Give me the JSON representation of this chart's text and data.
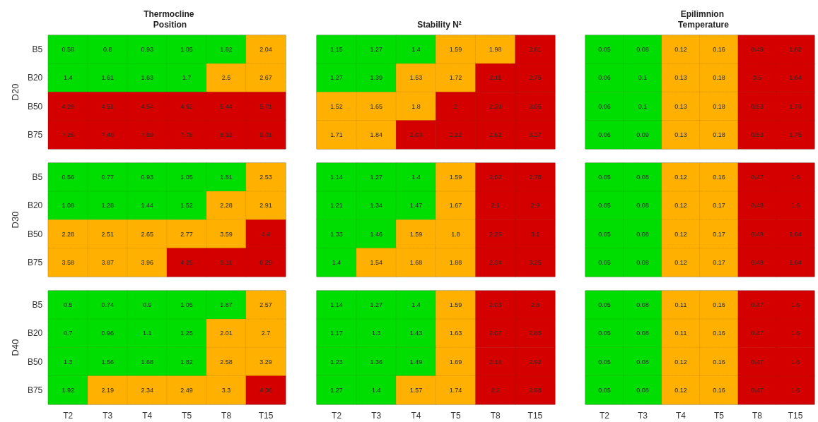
{
  "chart_data": [
    {
      "type": "heatmap",
      "title": "Thermocline Position",
      "ylabel": "D20",
      "categories": [
        "T2",
        "T3",
        "T4",
        "T5",
        "T8",
        "T15"
      ],
      "y_categories": [
        "B5",
        "B20",
        "B50",
        "B75"
      ],
      "tick_labels": "y",
      "data_labels": true,
      "cells": [
        [
          0.58,
          0.8,
          0.93,
          1.05,
          1.82,
          2.04
        ],
        [
          1.4,
          1.61,
          1.63,
          1.7,
          2.5,
          2.67
        ],
        [
          4.29,
          4.51,
          4.54,
          4.62,
          5.44,
          5.71
        ],
        [
          7.26,
          7.48,
          7.69,
          7.78,
          8.62,
          9.01
        ]
      ],
      "colors": [
        [
          "#00dd00",
          "#00dd00",
          "#00dd00",
          "#00dd00",
          "#00dd00",
          "#ffb000"
        ],
        [
          "#00dd00",
          "#00dd00",
          "#00dd00",
          "#00dd00",
          "#ffb000",
          "#ffb000"
        ],
        [
          "#d40000",
          "#d40000",
          "#d40000",
          "#d40000",
          "#d40000",
          "#d40000"
        ],
        [
          "#d40000",
          "#d40000",
          "#d40000",
          "#d40000",
          "#d40000",
          "#d40000"
        ]
      ]
    },
    {
      "type": "heatmap",
      "title": "Stability N²",
      "categories": [
        "T2",
        "T3",
        "T4",
        "T5",
        "T8",
        "T15"
      ],
      "y_categories": [
        "B5",
        "B20",
        "B50",
        "B75"
      ],
      "tick_labels": false,
      "data_labels": true,
      "cells": [
        [
          1.15,
          1.27,
          1.4,
          1.59,
          1.98,
          2.61
        ],
        [
          1.27,
          1.39,
          1.53,
          1.72,
          2.11,
          2.75
        ],
        [
          1.52,
          1.65,
          1.8,
          2,
          2.39,
          3.05
        ],
        [
          1.71,
          1.84,
          2.03,
          2.22,
          2.62,
          3.27
        ]
      ],
      "colors": [
        [
          "#00dd00",
          "#00dd00",
          "#00dd00",
          "#ffb000",
          "#ffb000",
          "#d40000"
        ],
        [
          "#00dd00",
          "#00dd00",
          "#ffb000",
          "#ffb000",
          "#d40000",
          "#d40000"
        ],
        [
          "#ffb000",
          "#ffb000",
          "#ffb000",
          "#d40000",
          "#d40000",
          "#d40000"
        ],
        [
          "#ffb000",
          "#ffb000",
          "#d40000",
          "#d40000",
          "#d40000",
          "#d40000"
        ]
      ]
    },
    {
      "type": "heatmap",
      "title": "Epilimnion Temperature",
      "categories": [
        "T2",
        "T3",
        "T4",
        "T5",
        "T8",
        "T15"
      ],
      "y_categories": [
        "B5",
        "B20",
        "B50",
        "B75"
      ],
      "tick_labels": false,
      "data_labels": true,
      "cells": [
        [
          0.05,
          0.08,
          0.12,
          0.16,
          0.49,
          1.62
        ],
        [
          0.06,
          0.1,
          0.13,
          0.18,
          0.5,
          1.64
        ],
        [
          0.06,
          0.1,
          0.13,
          0.18,
          0.53,
          1.76
        ],
        [
          0.06,
          0.09,
          0.13,
          0.18,
          0.53,
          1.75
        ]
      ],
      "colors": [
        [
          "#00dd00",
          "#00dd00",
          "#ffb000",
          "#ffb000",
          "#d40000",
          "#d40000"
        ],
        [
          "#00dd00",
          "#00dd00",
          "#ffb000",
          "#ffb000",
          "#d40000",
          "#d40000"
        ],
        [
          "#00dd00",
          "#00dd00",
          "#ffb000",
          "#ffb000",
          "#d40000",
          "#d40000"
        ],
        [
          "#00dd00",
          "#00dd00",
          "#ffb000",
          "#ffb000",
          "#d40000",
          "#d40000"
        ]
      ]
    },
    {
      "type": "heatmap",
      "ylabel": "D30",
      "categories": [
        "T2",
        "T3",
        "T4",
        "T5",
        "T8",
        "T15"
      ],
      "y_categories": [
        "B5",
        "B20",
        "B50",
        "B75"
      ],
      "tick_labels": "y",
      "data_labels": true,
      "cells": [
        [
          0.56,
          0.77,
          0.93,
          1.05,
          1.81,
          2.53
        ],
        [
          1.08,
          1.28,
          1.44,
          1.52,
          2.28,
          2.91
        ],
        [
          2.28,
          2.51,
          2.65,
          2.77,
          3.59,
          4.4
        ],
        [
          3.58,
          3.87,
          3.96,
          4.25,
          5.11,
          6.29
        ]
      ],
      "colors": [
        [
          "#00dd00",
          "#00dd00",
          "#00dd00",
          "#00dd00",
          "#00dd00",
          "#ffb000"
        ],
        [
          "#00dd00",
          "#00dd00",
          "#00dd00",
          "#00dd00",
          "#ffb000",
          "#ffb000"
        ],
        [
          "#ffb000",
          "#ffb000",
          "#ffb000",
          "#ffb000",
          "#ffb000",
          "#d40000"
        ],
        [
          "#ffb000",
          "#ffb000",
          "#ffb000",
          "#d40000",
          "#d40000",
          "#d40000"
        ]
      ]
    },
    {
      "type": "heatmap",
      "categories": [
        "T2",
        "T3",
        "T4",
        "T5",
        "T8",
        "T15"
      ],
      "y_categories": [
        "B5",
        "B20",
        "B50",
        "B75"
      ],
      "tick_labels": false,
      "data_labels": true,
      "cells": [
        [
          1.14,
          1.27,
          1.4,
          1.59,
          2.02,
          2.78
        ],
        [
          1.21,
          1.34,
          1.47,
          1.67,
          2.1,
          2.9
        ],
        [
          1.33,
          1.46,
          1.59,
          1.8,
          2.25,
          3.1
        ],
        [
          1.4,
          1.54,
          1.68,
          1.88,
          2.34,
          3.25
        ]
      ],
      "colors": [
        [
          "#00dd00",
          "#00dd00",
          "#00dd00",
          "#ffb000",
          "#d40000",
          "#d40000"
        ],
        [
          "#00dd00",
          "#00dd00",
          "#00dd00",
          "#ffb000",
          "#d40000",
          "#d40000"
        ],
        [
          "#00dd00",
          "#00dd00",
          "#ffb000",
          "#ffb000",
          "#d40000",
          "#d40000"
        ],
        [
          "#00dd00",
          "#ffb000",
          "#ffb000",
          "#ffb000",
          "#d40000",
          "#d40000"
        ]
      ]
    },
    {
      "type": "heatmap",
      "categories": [
        "T2",
        "T3",
        "T4",
        "T5",
        "T8",
        "T15"
      ],
      "y_categories": [
        "B5",
        "B20",
        "B50",
        "B75"
      ],
      "tick_labels": false,
      "data_labels": true,
      "cells": [
        [
          0.05,
          0.08,
          0.12,
          0.16,
          0.47,
          1.6
        ],
        [
          0.05,
          0.08,
          0.12,
          0.17,
          0.48,
          1.6
        ],
        [
          0.05,
          0.08,
          0.12,
          0.17,
          0.48,
          1.64
        ],
        [
          0.05,
          0.08,
          0.12,
          0.17,
          0.48,
          1.64
        ]
      ],
      "colors": [
        [
          "#00dd00",
          "#00dd00",
          "#ffb000",
          "#ffb000",
          "#d40000",
          "#d40000"
        ],
        [
          "#00dd00",
          "#00dd00",
          "#ffb000",
          "#ffb000",
          "#d40000",
          "#d40000"
        ],
        [
          "#00dd00",
          "#00dd00",
          "#ffb000",
          "#ffb000",
          "#d40000",
          "#d40000"
        ],
        [
          "#00dd00",
          "#00dd00",
          "#ffb000",
          "#ffb000",
          "#d40000",
          "#d40000"
        ]
      ]
    },
    {
      "type": "heatmap",
      "ylabel": "D40",
      "categories": [
        "T2",
        "T3",
        "T4",
        "T5",
        "T8",
        "T15"
      ],
      "y_categories": [
        "B5",
        "B20",
        "B50",
        "B75"
      ],
      "data_labels": true,
      "cells": [
        [
          0.5,
          0.74,
          0.9,
          1.05,
          1.87,
          2.57
        ],
        [
          0.7,
          0.96,
          1.1,
          1.25,
          2.01,
          2.7
        ],
        [
          1.3,
          1.56,
          1.68,
          1.82,
          2.58,
          3.29
        ],
        [
          1.92,
          2.19,
          2.34,
          2.49,
          3.3,
          4.06
        ]
      ],
      "colors": [
        [
          "#00dd00",
          "#00dd00",
          "#00dd00",
          "#00dd00",
          "#00dd00",
          "#ffb000"
        ],
        [
          "#00dd00",
          "#00dd00",
          "#00dd00",
          "#00dd00",
          "#ffb000",
          "#ffb000"
        ],
        [
          "#00dd00",
          "#00dd00",
          "#00dd00",
          "#00dd00",
          "#ffb000",
          "#ffb000"
        ],
        [
          "#00dd00",
          "#ffb000",
          "#ffb000",
          "#ffb000",
          "#ffb000",
          "#d40000"
        ]
      ]
    },
    {
      "type": "heatmap",
      "categories": [
        "T2",
        "T3",
        "T4",
        "T5",
        "T8",
        "T15"
      ],
      "y_categories": [
        "B5",
        "B20",
        "B50",
        "B75"
      ],
      "tick_labels": "x",
      "data_labels": true,
      "cells": [
        [
          1.14,
          1.27,
          1.4,
          1.59,
          2.03,
          2.8
        ],
        [
          1.17,
          1.3,
          1.43,
          1.63,
          2.07,
          2.85
        ],
        [
          1.23,
          1.36,
          1.49,
          1.69,
          2.14,
          2.92
        ],
        [
          1.27,
          1.4,
          1.57,
          1.74,
          2.2,
          2.88
        ]
      ],
      "colors": [
        [
          "#00dd00",
          "#00dd00",
          "#00dd00",
          "#ffb000",
          "#d40000",
          "#d40000"
        ],
        [
          "#00dd00",
          "#00dd00",
          "#00dd00",
          "#ffb000",
          "#d40000",
          "#d40000"
        ],
        [
          "#00dd00",
          "#00dd00",
          "#00dd00",
          "#ffb000",
          "#d40000",
          "#d40000"
        ],
        [
          "#00dd00",
          "#00dd00",
          "#ffb000",
          "#ffb000",
          "#d40000",
          "#d40000"
        ]
      ]
    },
    {
      "type": "heatmap",
      "categories": [
        "T2",
        "T3",
        "T4",
        "T5",
        "T8",
        "T15"
      ],
      "y_categories": [
        "B5",
        "B20",
        "B50",
        "B75"
      ],
      "tick_labels": "x",
      "data_labels": true,
      "cells": [
        [
          0.05,
          0.08,
          0.11,
          0.16,
          0.47,
          1.6
        ],
        [
          0.05,
          0.08,
          0.11,
          0.16,
          0.47,
          1.6
        ],
        [
          0.05,
          0.08,
          0.12,
          0.16,
          0.47,
          1.6
        ],
        [
          0.05,
          0.08,
          0.12,
          0.16,
          0.47,
          1.6
        ]
      ],
      "colors": [
        [
          "#00dd00",
          "#00dd00",
          "#ffb000",
          "#ffb000",
          "#d40000",
          "#d40000"
        ],
        [
          "#00dd00",
          "#00dd00",
          "#ffb000",
          "#ffb000",
          "#d40000",
          "#d40000"
        ],
        [
          "#00dd00",
          "#00dd00",
          "#ffb000",
          "#ffb000",
          "#d40000",
          "#d40000"
        ],
        [
          "#00dd00",
          "#00dd00",
          "#ffb000",
          "#ffb000",
          "#d40000",
          "#d40000"
        ]
      ]
    }
  ]
}
